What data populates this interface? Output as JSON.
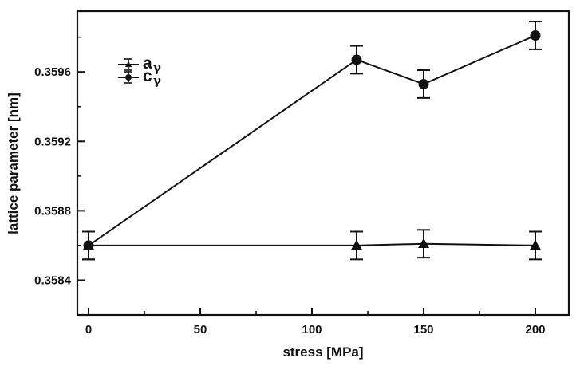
{
  "chart_data": {
    "type": "line",
    "title": "",
    "xlabel": "stress  [MPa]",
    "ylabel": "lattice parameter  [nm]",
    "xlim": [
      -5,
      215
    ],
    "ylim": [
      0.3582,
      0.35995
    ],
    "xticks": [
      0,
      50,
      100,
      150,
      200
    ],
    "xtick_labels": [
      "0",
      "50",
      "100",
      "150",
      "200"
    ],
    "yticks": [
      0.3584,
      0.3588,
      0.3592,
      0.3596
    ],
    "ytick_labels": [
      "0.3584",
      "0.3588",
      "0.3592",
      "0.3596"
    ],
    "grid": false,
    "legend_position": "top-left",
    "series": [
      {
        "name": "a",
        "subscript": "γ",
        "marker": "triangle",
        "x": [
          0,
          120,
          150,
          200
        ],
        "y": [
          0.3586,
          0.3586,
          0.35861,
          0.3586
        ],
        "yerr": [
          8e-05,
          8e-05,
          8e-05,
          8e-05
        ]
      },
      {
        "name": "c",
        "subscript": "γ",
        "marker": "circle",
        "x": [
          0,
          120,
          150,
          200
        ],
        "y": [
          0.3586,
          0.35967,
          0.35953,
          0.35981
        ],
        "yerr": [
          8e-05,
          8e-05,
          8e-05,
          8e-05
        ]
      }
    ]
  },
  "colors": {
    "ink": "#111111",
    "background": "#ffffff"
  }
}
